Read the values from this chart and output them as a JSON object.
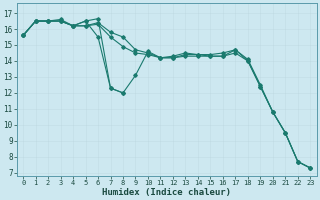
{
  "xlabel": "Humidex (Indice chaleur)",
  "bg_color": "#cde8f0",
  "line_color": "#1a7a6e",
  "grid_color": "#b8d4dc",
  "grid_color_major": "#c8a0a0",
  "xlim": [
    -0.5,
    23.5
  ],
  "ylim": [
    6.8,
    17.6
  ],
  "yticks": [
    7,
    8,
    9,
    10,
    11,
    12,
    13,
    14,
    15,
    16,
    17
  ],
  "xticks": [
    0,
    1,
    2,
    3,
    4,
    5,
    6,
    7,
    8,
    9,
    10,
    11,
    12,
    13,
    14,
    15,
    16,
    17,
    18,
    19,
    20,
    21,
    22,
    23
  ],
  "lines": [
    {
      "x": [
        0,
        1,
        2,
        3,
        4,
        5,
        6,
        7,
        8,
        9,
        10,
        11,
        12,
        13,
        14,
        15,
        16,
        17,
        18,
        19,
        20,
        21,
        22,
        23
      ],
      "y": [
        15.6,
        16.5,
        16.5,
        16.6,
        16.2,
        16.2,
        16.4,
        15.8,
        15.5,
        14.7,
        14.5,
        14.2,
        14.3,
        14.5,
        14.4,
        14.4,
        14.5,
        14.7,
        14.1,
        12.5,
        10.8,
        9.5,
        7.7,
        7.3
      ]
    },
    {
      "x": [
        0,
        1,
        2,
        3,
        4,
        5,
        6,
        7,
        8,
        9,
        10,
        11,
        12,
        13,
        14,
        15,
        16,
        17,
        18,
        19,
        20,
        21,
        22,
        23
      ],
      "y": [
        15.6,
        16.5,
        16.5,
        16.5,
        16.2,
        16.5,
        15.5,
        12.3,
        12.0,
        13.1,
        14.6,
        14.2,
        14.2,
        14.4,
        14.4,
        14.3,
        14.3,
        14.7,
        14.0,
        12.4,
        10.8,
        9.5,
        7.7,
        7.3
      ]
    },
    {
      "x": [
        0,
        1,
        2,
        3,
        4,
        5,
        6,
        7,
        8,
        9,
        10,
        11,
        12,
        13,
        14,
        15,
        16,
        17,
        18,
        19,
        20,
        21,
        22,
        23
      ],
      "y": [
        15.6,
        16.5,
        16.5,
        16.5,
        16.2,
        16.2,
        16.3,
        15.5,
        14.9,
        14.5,
        14.4,
        14.2,
        14.2,
        14.3,
        14.3,
        14.3,
        14.3,
        14.5,
        14.0,
        12.4,
        10.8,
        9.5,
        7.7,
        7.3
      ]
    },
    {
      "x": [
        0,
        1,
        2,
        3,
        4,
        5,
        6,
        7,
        8
      ],
      "y": [
        15.6,
        16.5,
        16.5,
        16.5,
        16.2,
        16.5,
        16.65,
        12.3,
        12.0
      ]
    }
  ]
}
